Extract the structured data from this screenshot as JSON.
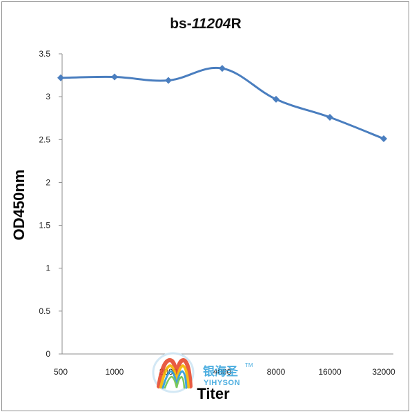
{
  "chart_data": {
    "type": "line",
    "title": {
      "prefix": "bs-",
      "italic": "11204",
      "suffix": "R"
    },
    "xlabel": "Titer",
    "ylabel": "OD450nm",
    "categories": [
      "500",
      "1000",
      "2000",
      "4000",
      "8000",
      "16000",
      "32000"
    ],
    "series": [
      {
        "values": [
          3.22,
          3.23,
          3.19,
          3.33,
          2.97,
          2.76,
          2.51
        ]
      }
    ],
    "ylim": [
      0,
      3.5
    ],
    "yticks": [
      "0",
      "0.5",
      "1",
      "1.5",
      "2",
      "2.5",
      "3",
      "3.5"
    ],
    "grid": false,
    "legend": "none",
    "marker": "diamond",
    "line_color": "#4a7ebf"
  },
  "watermark": {
    "chinese": "银海圣",
    "english": "YIHYSON",
    "tm": "TM"
  }
}
